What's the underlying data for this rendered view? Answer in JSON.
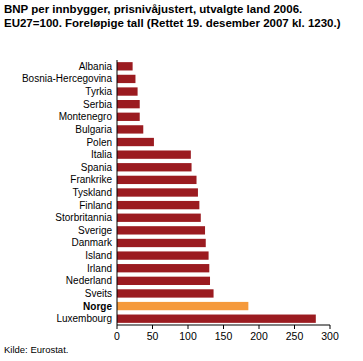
{
  "chart_data": {
    "type": "bar",
    "orientation": "horizontal",
    "title": "BNP per innbygger, prisnivåjustert, utvalgte land 2006. EU27=100. Foreløpige tall (Rettet 19. desember 2007 kl. 1230.)",
    "source": "Kilde: Eurostat.",
    "categories": [
      "Albania",
      "Bosnia-Hercegovina",
      "Tyrkia",
      "Serbia",
      "Montenegro",
      "Bulgaria",
      "Polen",
      "Italia",
      "Spania",
      "Frankrike",
      "Tyskland",
      "Finland",
      "Storbritannia",
      "Sverige",
      "Danmark",
      "Island",
      "Irland",
      "Nederland",
      "Sveits",
      "Norge",
      "Luxembourg"
    ],
    "values": [
      22,
      26,
      29,
      32,
      32,
      37,
      52,
      104,
      105,
      112,
      114,
      116,
      118,
      124,
      125,
      129,
      130,
      131,
      136,
      185,
      280
    ],
    "colors": [
      "#9b1b20",
      "#9b1b20",
      "#9b1b20",
      "#9b1b20",
      "#9b1b20",
      "#9b1b20",
      "#9b1b20",
      "#9b1b20",
      "#9b1b20",
      "#9b1b20",
      "#9b1b20",
      "#9b1b20",
      "#9b1b20",
      "#9b1b20",
      "#9b1b20",
      "#9b1b20",
      "#9b1b20",
      "#9b1b20",
      "#9b1b20",
      "#f59a3c",
      "#9b1b20"
    ],
    "xlim": [
      0,
      300
    ],
    "xticks": [
      0,
      50,
      100,
      150,
      200,
      250,
      300
    ],
    "grid": false
  }
}
